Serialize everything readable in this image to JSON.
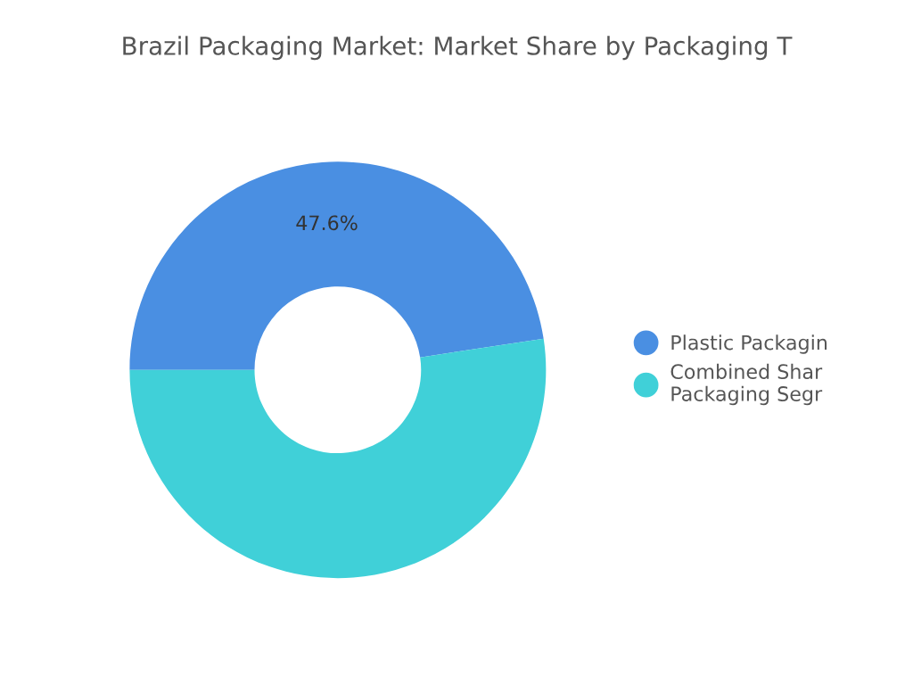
{
  "chart_data": {
    "type": "donut",
    "title": "Brazil Packaging Market: Market Share by Packaging T",
    "categories": [
      "Plastic Packagin",
      "Combined Shar\nPackaging Segr"
    ],
    "values": [
      47.6,
      52.4
    ],
    "colors": [
      "#4a8fe2",
      "#40d0d8"
    ],
    "value_labels": [
      "47.6%",
      null
    ],
    "legend": "right"
  }
}
